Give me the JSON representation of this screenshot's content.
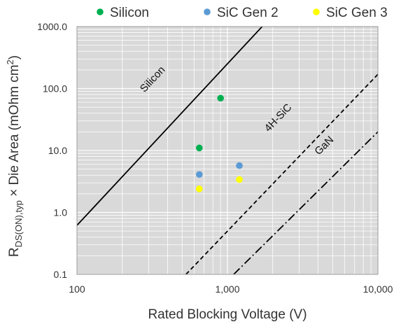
{
  "chart_data": {
    "type": "scatter",
    "x_scale": "log",
    "y_scale": "log",
    "xlim": [
      100,
      10000
    ],
    "ylim": [
      0.1,
      1000
    ],
    "grid": true,
    "legend_position": "top",
    "plot_background": "#d9d9d9",
    "x_ticks": [
      {
        "value": 100,
        "label": "100"
      },
      {
        "value": 1000,
        "label": "1,000"
      },
      {
        "value": 10000,
        "label": "10,000"
      }
    ],
    "y_ticks": [
      {
        "value": 0.1,
        "label": "0.1"
      },
      {
        "value": 1,
        "label": "1.0"
      },
      {
        "value": 10,
        "label": "10.0"
      },
      {
        "value": 100,
        "label": "100.0"
      },
      {
        "value": 1000,
        "label": "1000.0"
      }
    ],
    "xlabel": "Rated Blocking Voltage (V)",
    "ylabel": {
      "main": "R",
      "subscript": "DS(ON),typ",
      "rest": " × Die Area (mOhm cm",
      "superscript": "2",
      "close": ")"
    },
    "series": [
      {
        "name": "Silicon",
        "color": "#00b050",
        "points": [
          {
            "x": 650,
            "y": 11
          },
          {
            "x": 900,
            "y": 70
          }
        ]
      },
      {
        "name": "SiC Gen 2",
        "color": "#5b9bd5",
        "points": [
          {
            "x": 650,
            "y": 4.1
          },
          {
            "x": 1200,
            "y": 5.7
          }
        ]
      },
      {
        "name": "SiC Gen 3",
        "color": "#ffff00",
        "points": [
          {
            "x": 650,
            "y": 2.4
          },
          {
            "x": 1200,
            "y": 3.4
          }
        ]
      }
    ],
    "limit_lines": [
      {
        "label": "Silicon",
        "style": "solid",
        "color": "#000000",
        "points": [
          {
            "x": 100,
            "y": 0.62
          },
          {
            "x": 1700,
            "y": 1000
          }
        ],
        "label_at": {
          "x": 330,
          "y": 130
        }
      },
      {
        "label": "4H-SiC",
        "style": "dashed",
        "color": "#000000",
        "points": [
          {
            "x": 530,
            "y": 0.1
          },
          {
            "x": 10000,
            "y": 170
          }
        ],
        "label_at": {
          "x": 2250,
          "y": 31
        }
      },
      {
        "label": "GaN",
        "style": "dashdot",
        "color": "#000000",
        "points": [
          {
            "x": 1100,
            "y": 0.1
          },
          {
            "x": 10000,
            "y": 20
          }
        ],
        "label_at": {
          "x": 4550,
          "y": 11
        }
      }
    ]
  }
}
